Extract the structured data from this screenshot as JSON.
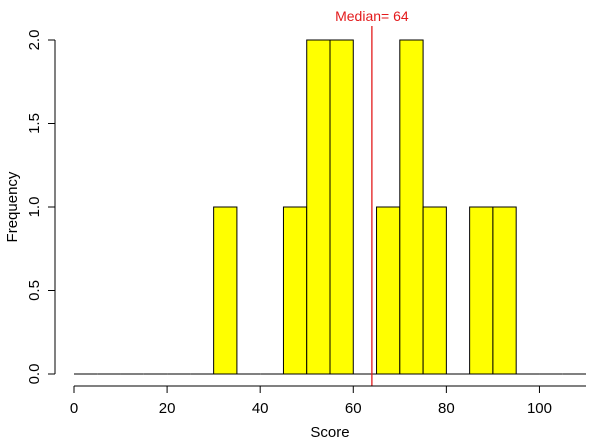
{
  "chart_data": {
    "type": "bar",
    "subtype": "histogram",
    "xlabel": "Score",
    "ylabel": "Frequency",
    "xlim": [
      0,
      110
    ],
    "ylim": [
      0,
      2
    ],
    "x_ticks": [
      0,
      20,
      40,
      60,
      80,
      100
    ],
    "x_tick_labels": [
      "0",
      "20",
      "40",
      "60",
      "80",
      "100"
    ],
    "y_ticks": [
      0,
      0.5,
      1,
      1.5,
      2
    ],
    "y_tick_labels": [
      "0.0",
      "0.5",
      "1.0",
      "1.5",
      "2.0"
    ],
    "bin_width": 5,
    "bins": [
      {
        "start": 0,
        "end": 5,
        "count": 0
      },
      {
        "start": 5,
        "end": 10,
        "count": 0
      },
      {
        "start": 10,
        "end": 15,
        "count": 0
      },
      {
        "start": 15,
        "end": 20,
        "count": 0
      },
      {
        "start": 20,
        "end": 25,
        "count": 0
      },
      {
        "start": 25,
        "end": 30,
        "count": 0
      },
      {
        "start": 30,
        "end": 35,
        "count": 1
      },
      {
        "start": 35,
        "end": 40,
        "count": 0
      },
      {
        "start": 40,
        "end": 45,
        "count": 0
      },
      {
        "start": 45,
        "end": 50,
        "count": 1
      },
      {
        "start": 50,
        "end": 55,
        "count": 2
      },
      {
        "start": 55,
        "end": 60,
        "count": 2
      },
      {
        "start": 60,
        "end": 65,
        "count": 0
      },
      {
        "start": 65,
        "end": 70,
        "count": 1
      },
      {
        "start": 70,
        "end": 75,
        "count": 2
      },
      {
        "start": 75,
        "end": 80,
        "count": 1
      },
      {
        "start": 80,
        "end": 85,
        "count": 0
      },
      {
        "start": 85,
        "end": 90,
        "count": 1
      },
      {
        "start": 90,
        "end": 95,
        "count": 1
      },
      {
        "start": 95,
        "end": 100,
        "count": 0
      },
      {
        "start": 100,
        "end": 105,
        "count": 0
      },
      {
        "start": 105,
        "end": 110,
        "count": 0
      }
    ],
    "median": {
      "value": 64,
      "label": "Median= 64"
    },
    "colors": {
      "bar_fill": "#ffff00",
      "bar_stroke": "#000000",
      "median_line": "#e31a1c"
    },
    "grid": false,
    "legend": false
  }
}
